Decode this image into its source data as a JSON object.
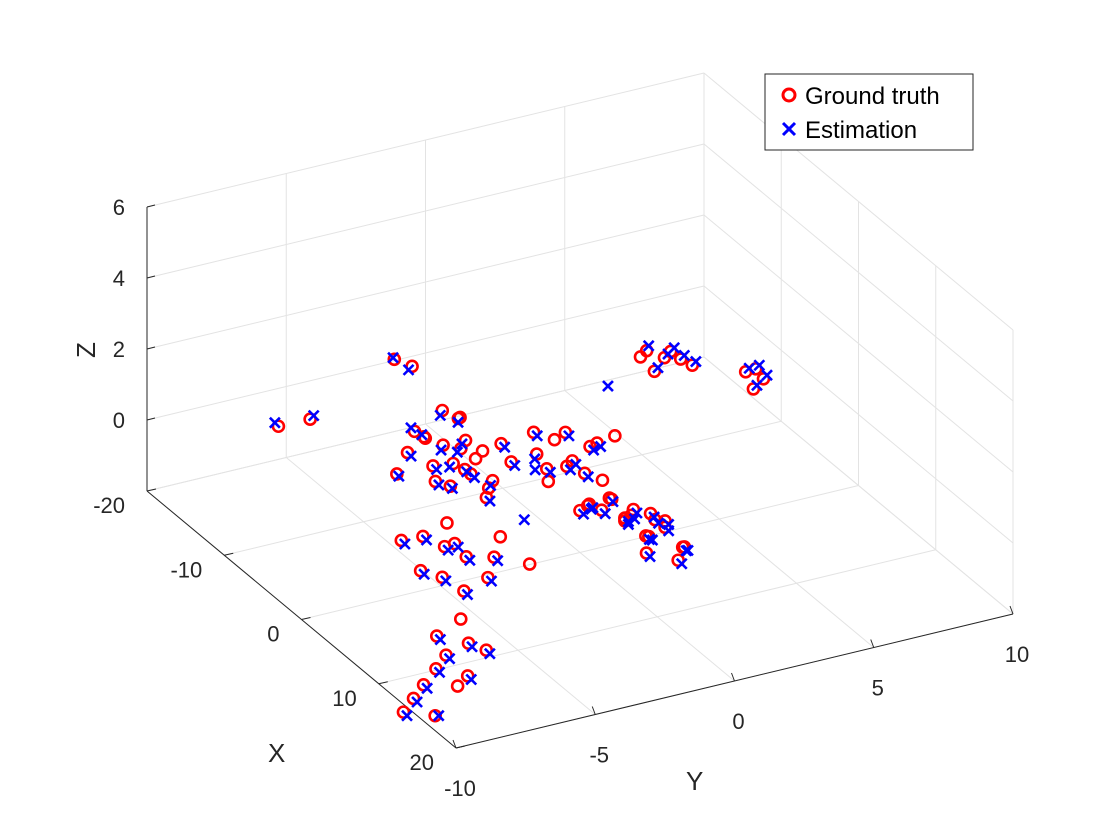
{
  "chart_data": {
    "type": "scatter3d",
    "title": "",
    "xlabel": "X",
    "ylabel": "Y",
    "zlabel": "Z",
    "xlim": [
      -20,
      20
    ],
    "ylim": [
      -10,
      10
    ],
    "zlim": [
      -2,
      6
    ],
    "x_ticks": [
      "-20",
      "-10",
      "0",
      "10",
      "20"
    ],
    "y_ticks": [
      "-10",
      "-5",
      "0",
      "5",
      "10"
    ],
    "z_ticks": [
      "0",
      "2",
      "4",
      "6"
    ],
    "grid": true,
    "legend_position": "top-right",
    "colors": {
      "ground_truth": "#ff0000",
      "estimation": "#0000ff",
      "axes": "#262626",
      "grid": "#e3e3e3"
    },
    "series": [
      {
        "name": "Ground truth",
        "marker": "o",
        "points": [
          [
            3.0,
            -7.5,
            5.4
          ],
          [
            3.5,
            -7.0,
            5.2
          ],
          [
            2.0,
            -5.5,
            3.4
          ],
          [
            2.5,
            -5.0,
            3.2
          ],
          [
            3.0,
            -5.2,
            3.3
          ],
          [
            -2.0,
            -5.0,
            1.8
          ],
          [
            -1.5,
            -4.5,
            1.6
          ],
          [
            -1.0,
            -4.0,
            1.5
          ],
          [
            -2.5,
            -5.5,
            1.4
          ],
          [
            -1.0,
            -5.0,
            1.2
          ],
          [
            -0.5,
            -4.0,
            1.0
          ],
          [
            -2.0,
            -4.0,
            0.9
          ],
          [
            -1.5,
            -3.5,
            0.6
          ],
          [
            -0.5,
            -3.0,
            0.5
          ],
          [
            -1.0,
            -3.0,
            0.2
          ],
          [
            -2.5,
            -4.5,
            0.4
          ],
          [
            -0.2,
            -4.6,
            0.7
          ],
          [
            -1.8,
            -3.0,
            1.1
          ],
          [
            0.5,
            -3.5,
            0.3
          ],
          [
            -2.8,
            -5.8,
            0.8
          ],
          [
            -4.0,
            -3.0,
            1.0
          ],
          [
            -3.0,
            -2.0,
            0.9
          ],
          [
            -2.0,
            -1.0,
            0.6
          ],
          [
            -1.0,
            0.0,
            0.4
          ],
          [
            -1.5,
            -0.5,
            1.0
          ],
          [
            -3.5,
            -1.5,
            0.2
          ],
          [
            -2.5,
            -0.5,
            0.0
          ],
          [
            -0.5,
            -1.0,
            0.1
          ],
          [
            -4.5,
            -2.5,
            0.3
          ],
          [
            -0.5,
            0.5,
            0.8
          ],
          [
            -6.0,
            0.0,
            0.3
          ],
          [
            -5.5,
            1.0,
            0.2
          ],
          [
            -5.0,
            2.0,
            -0.2
          ],
          [
            -4.5,
            2.5,
            0.0
          ],
          [
            -3.0,
            1.0,
            -0.5
          ],
          [
            -2.5,
            1.5,
            -0.7
          ],
          [
            -3.5,
            0.5,
            -0.3
          ],
          [
            2.0,
            0.5,
            -0.2
          ],
          [
            1.0,
            0.0,
            -0.5
          ],
          [
            3.0,
            1.0,
            -0.6
          ],
          [
            2.5,
            2.0,
            -1.0
          ],
          [
            1.5,
            1.5,
            -0.8
          ],
          [
            4.0,
            0.5,
            -0.4
          ],
          [
            3.5,
            1.5,
            -1.2
          ],
          [
            2.0,
            2.5,
            -1.4
          ],
          [
            3.0,
            -0.5,
            0.0
          ],
          [
            4.5,
            2.5,
            -1.5
          ],
          [
            2.2,
            1.0,
            -0.9
          ],
          [
            3.8,
            2.0,
            -0.8
          ],
          [
            1.2,
            2.2,
            -1.1
          ],
          [
            2.8,
            0.0,
            -0.3
          ],
          [
            4.2,
            1.2,
            -1.0
          ],
          [
            5.0,
            1.0,
            -1.3
          ],
          [
            5.5,
            2.0,
            -1.6
          ],
          [
            1.8,
            -0.5,
            -0.4
          ],
          [
            3.2,
            2.8,
            -1.8
          ],
          [
            0.5,
            1.0,
            -0.6
          ],
          [
            -1.5,
            -6.0,
            -0.8
          ],
          [
            -0.5,
            -5.5,
            -0.6
          ],
          [
            0.5,
            -5.0,
            -0.8
          ],
          [
            1.5,
            -4.5,
            -1.0
          ],
          [
            1.0,
            -6.0,
            -1.2
          ],
          [
            2.0,
            -5.5,
            -1.3
          ],
          [
            2.5,
            -4.0,
            -1.5
          ],
          [
            0.0,
            -4.5,
            -0.9
          ],
          [
            -1.0,
            -4.5,
            -0.5
          ],
          [
            3.0,
            -5.0,
            -1.6
          ],
          [
            1.5,
            -3.5,
            -1.2
          ],
          [
            2.5,
            -2.5,
            -1.4
          ],
          [
            0.5,
            -3.0,
            -0.9
          ],
          [
            9.0,
            -6.5,
            -1.7
          ],
          [
            8.5,
            -7.5,
            -1.4
          ],
          [
            9.5,
            -6.0,
            -1.9
          ],
          [
            8.0,
            -6.5,
            -1.2
          ],
          [
            12.0,
            -8.5,
            -1.5
          ],
          [
            11.5,
            -8.0,
            -1.3
          ],
          [
            12.5,
            -7.5,
            -1.8
          ],
          [
            13.0,
            -8.0,
            -1.9
          ],
          [
            15.0,
            -10.5,
            -1.8
          ],
          [
            14.5,
            -10.0,
            -1.6
          ],
          [
            15.5,
            -9.5,
            -2.0
          ],
          [
            14.0,
            -9.5,
            -1.4
          ],
          [
            -12.0,
            -7.5,
            0.8
          ],
          [
            -11.5,
            -6.5,
            0.9
          ],
          [
            -7.0,
            -4.0,
            0.9
          ],
          [
            -6.5,
            -3.8,
            0.8
          ],
          [
            -13.0,
            6.0,
            0.2
          ],
          [
            -12.5,
            6.5,
            0.0
          ],
          [
            -12.0,
            6.0,
            -0.2
          ],
          [
            -13.5,
            7.0,
            -0.1
          ],
          [
            -12.5,
            7.5,
            -0.4
          ],
          [
            -14.0,
            7.5,
            -0.5
          ],
          [
            -12.0,
            5.5,
            0.3
          ],
          [
            -11.0,
            9.0,
            -0.6
          ],
          [
            -10.5,
            9.5,
            -0.8
          ],
          [
            -11.5,
            9.5,
            -0.7
          ],
          [
            -10.0,
            9.0,
            -0.9
          ]
        ]
      },
      {
        "name": "Estimation",
        "marker": "x",
        "points": [
          [
            3.2,
            -7.6,
            5.5
          ],
          [
            3.4,
            -7.1,
            5.1
          ],
          [
            2.1,
            -5.6,
            3.3
          ],
          [
            2.6,
            -5.1,
            3.1
          ],
          [
            -2.1,
            -5.1,
            1.9
          ],
          [
            -1.4,
            -4.6,
            1.5
          ],
          [
            -1.1,
            -4.1,
            1.4
          ],
          [
            -2.4,
            -5.4,
            1.3
          ],
          [
            -0.9,
            -4.9,
            1.1
          ],
          [
            -0.6,
            -3.9,
            0.9
          ],
          [
            -2.1,
            -4.1,
            0.8
          ],
          [
            -1.4,
            -3.4,
            0.5
          ],
          [
            -0.4,
            -3.1,
            0.4
          ],
          [
            -2.4,
            -4.4,
            0.3
          ],
          [
            -0.3,
            -4.5,
            0.6
          ],
          [
            0.6,
            -3.4,
            0.2
          ],
          [
            -2.9,
            -5.7,
            0.7
          ],
          [
            -4.1,
            -3.1,
            0.9
          ],
          [
            -2.9,
            -1.9,
            0.8
          ],
          [
            -1.9,
            -1.1,
            0.5
          ],
          [
            -0.9,
            0.1,
            0.3
          ],
          [
            -3.4,
            -1.4,
            0.1
          ],
          [
            -2.4,
            -0.4,
            -0.1
          ],
          [
            -0.4,
            0.6,
            0.7
          ],
          [
            -5.9,
            0.1,
            0.2
          ],
          [
            -5.4,
            1.1,
            0.1
          ],
          [
            -4.9,
            2.1,
            -0.3
          ],
          [
            -2.9,
            1.1,
            -0.6
          ],
          [
            -3.4,
            0.6,
            -0.4
          ],
          [
            2.1,
            0.6,
            -0.3
          ],
          [
            1.1,
            0.1,
            -0.6
          ],
          [
            3.1,
            1.1,
            -0.7
          ],
          [
            2.6,
            2.1,
            -1.1
          ],
          [
            1.6,
            1.6,
            -0.9
          ],
          [
            4.1,
            0.6,
            -0.5
          ],
          [
            3.6,
            1.6,
            -1.3
          ],
          [
            2.1,
            2.6,
            -1.5
          ],
          [
            3.1,
            -0.4,
            -0.1
          ],
          [
            4.6,
            2.6,
            -1.6
          ],
          [
            2.3,
            1.1,
            -1.0
          ],
          [
            3.9,
            2.1,
            -0.9
          ],
          [
            1.3,
            2.3,
            -1.2
          ],
          [
            2.9,
            0.1,
            -0.4
          ],
          [
            4.3,
            1.3,
            -1.1
          ],
          [
            5.1,
            1.1,
            -1.4
          ],
          [
            5.6,
            2.1,
            -1.7
          ],
          [
            1.9,
            -0.4,
            -0.5
          ],
          [
            3.3,
            2.9,
            -1.9
          ],
          [
            -1.4,
            -5.9,
            -0.9
          ],
          [
            -0.4,
            -5.4,
            -0.7
          ],
          [
            0.6,
            -4.9,
            -0.9
          ],
          [
            1.6,
            -4.4,
            -1.1
          ],
          [
            1.1,
            -5.9,
            -1.3
          ],
          [
            2.1,
            -5.4,
            -1.4
          ],
          [
            2.6,
            -3.9,
            -1.6
          ],
          [
            0.1,
            -4.4,
            -1.0
          ],
          [
            3.1,
            -4.9,
            -1.7
          ],
          [
            1.6,
            -3.4,
            -1.3
          ],
          [
            9.1,
            -6.4,
            -1.8
          ],
          [
            8.6,
            -7.4,
            -1.5
          ],
          [
            9.6,
            -5.9,
            -2.0
          ],
          [
            12.1,
            -8.4,
            -1.6
          ],
          [
            11.6,
            -7.9,
            -1.4
          ],
          [
            12.6,
            -7.4,
            -1.9
          ],
          [
            15.1,
            -10.4,
            -1.9
          ],
          [
            14.6,
            -9.9,
            -1.7
          ],
          [
            15.6,
            -9.4,
            -2.0
          ],
          [
            14.1,
            -9.4,
            -1.5
          ],
          [
            -12.1,
            -7.6,
            0.9
          ],
          [
            -11.4,
            -6.4,
            1.0
          ],
          [
            -7.1,
            -4.1,
            1.0
          ],
          [
            -13.1,
            6.1,
            0.3
          ],
          [
            -12.4,
            6.6,
            0.1
          ],
          [
            -11.9,
            6.1,
            -0.1
          ],
          [
            -13.4,
            7.1,
            0.0
          ],
          [
            -12.4,
            7.6,
            -0.3
          ],
          [
            -13.9,
            7.6,
            -0.4
          ],
          [
            -10.9,
            9.1,
            -0.5
          ],
          [
            -10.4,
            9.6,
            -0.7
          ],
          [
            -11.4,
            9.6,
            -0.6
          ],
          [
            -9.9,
            9.1,
            -0.8
          ],
          [
            -9.0,
            3.5,
            0.4
          ],
          [
            -4.0,
            -0.5,
            -0.3
          ],
          [
            0.0,
            -2.0,
            -0.7
          ]
        ]
      }
    ]
  },
  "legend": {
    "ground_truth_label": "Ground truth",
    "estimation_label": "Estimation"
  }
}
